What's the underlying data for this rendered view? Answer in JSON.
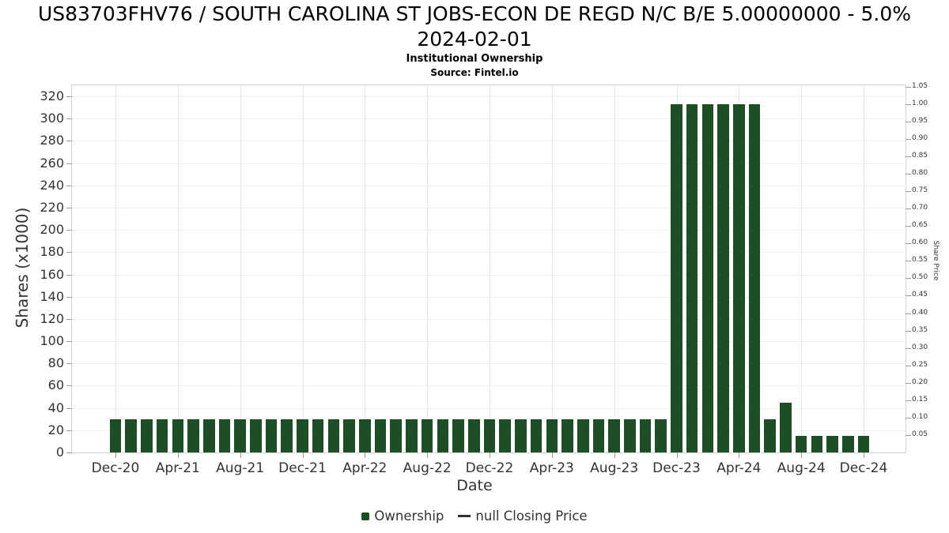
{
  "chart_data": {
    "type": "bar",
    "title": "US83703FHV76 / SOUTH CAROLINA ST JOBS-ECON DE REGD N/C B/E 5.00000000 - 5.0% 2024-02-01",
    "subtitle": "Institutional Ownership",
    "source": "Source: Fintel.io",
    "xlabel": "Date",
    "ylabel_left": "Shares (x1000)",
    "ylabel_right": "Share Price",
    "bar_color": "#1d4e25",
    "grid": true,
    "legend_position": "bottom",
    "legend": [
      {
        "label": "Ownership",
        "type": "bar"
      },
      {
        "label": "null Closing Price",
        "type": "line"
      }
    ],
    "categories": [
      "Dec-20",
      "Jan-21",
      "Feb-21",
      "Mar-21",
      "Apr-21",
      "May-21",
      "Jun-21",
      "Jul-21",
      "Aug-21",
      "Sep-21",
      "Oct-21",
      "Nov-21",
      "Dec-21",
      "Jan-22",
      "Feb-22",
      "Mar-22",
      "Apr-22",
      "May-22",
      "Jun-22",
      "Jul-22",
      "Aug-22",
      "Sep-22",
      "Oct-22",
      "Nov-22",
      "Dec-22",
      "Jan-23",
      "Feb-23",
      "Mar-23",
      "Apr-23",
      "May-23",
      "Jun-23",
      "Jul-23",
      "Aug-23",
      "Sep-23",
      "Oct-23",
      "Nov-23",
      "Dec-23",
      "Jan-24",
      "Feb-24",
      "Mar-24",
      "Apr-24",
      "May-24",
      "Jun-24",
      "Jul-24",
      "Aug-24",
      "Sep-24",
      "Oct-24",
      "Nov-24",
      "Dec-24"
    ],
    "values": [
      30,
      30,
      30,
      30,
      30,
      30,
      30,
      30,
      30,
      30,
      30,
      30,
      30,
      30,
      30,
      30,
      30,
      30,
      30,
      30,
      30,
      30,
      30,
      30,
      30,
      30,
      30,
      30,
      30,
      30,
      30,
      30,
      30,
      30,
      30,
      30,
      313,
      313,
      313,
      313,
      313,
      313,
      30,
      45,
      15,
      15,
      15,
      15,
      15
    ],
    "xticks": [
      "Dec-20",
      "Apr-21",
      "Aug-21",
      "Dec-21",
      "Apr-22",
      "Aug-22",
      "Dec-22",
      "Apr-23",
      "Aug-23",
      "Dec-23",
      "Apr-24",
      "Aug-24",
      "Dec-24"
    ],
    "yticks_left": [
      0,
      20,
      40,
      60,
      80,
      100,
      120,
      140,
      160,
      180,
      200,
      220,
      240,
      260,
      280,
      300,
      320
    ],
    "yticks_right": [
      0.05,
      0.1,
      0.15,
      0.2,
      0.25,
      0.3,
      0.35,
      0.4,
      0.45,
      0.5,
      0.55,
      0.6,
      0.65,
      0.7,
      0.75,
      0.8,
      0.85,
      0.9,
      0.95,
      1.0,
      1.05
    ],
    "ylim_left": [
      0,
      320
    ],
    "ylim_right": [
      0,
      1.05
    ]
  }
}
